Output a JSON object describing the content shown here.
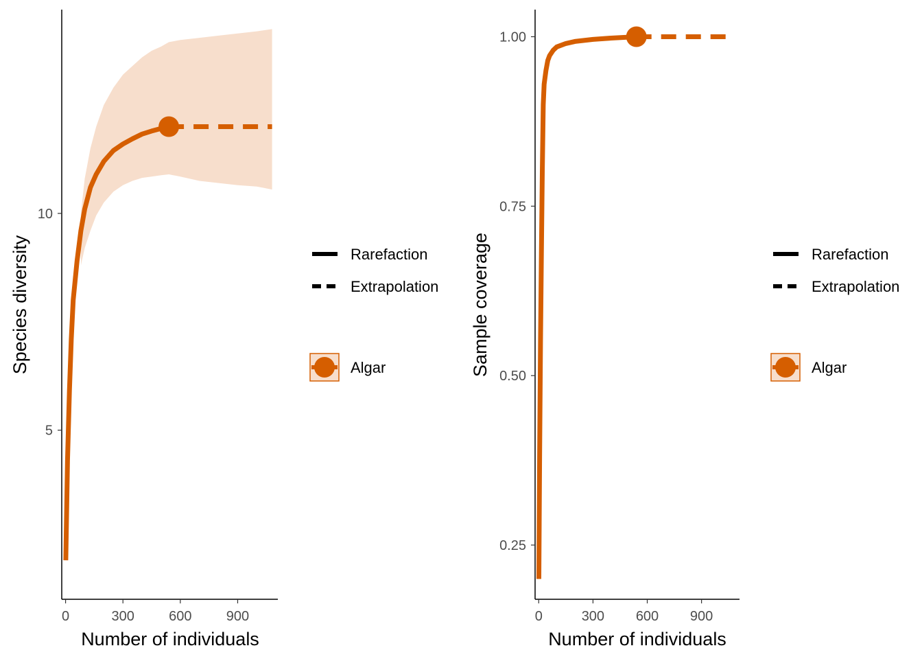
{
  "colors": {
    "series": "#D55E00",
    "band": "#F7DECC",
    "axis": "#000000",
    "tick_text": "#4d4d4d"
  },
  "chart_data": [
    {
      "type": "line",
      "xlabel": "Number of individuals",
      "ylabel": "Species diversity",
      "xlim": [
        -20,
        1110
      ],
      "ylim": [
        1.1,
        14.7
      ],
      "xticks": [
        0,
        300,
        600,
        900
      ],
      "yticks": [
        5,
        10
      ],
      "grid": false,
      "legend_position": "right",
      "observed_point": {
        "x": 540,
        "y": 12
      },
      "rarefaction": {
        "x": [
          1,
          10,
          20,
          30,
          40,
          60,
          80,
          100,
          130,
          160,
          200,
          250,
          300,
          350,
          400,
          450,
          500,
          540
        ],
        "y": [
          2.0,
          4.3,
          5.9,
          7.1,
          8.0,
          8.9,
          9.6,
          10.1,
          10.6,
          10.9,
          11.2,
          11.45,
          11.6,
          11.72,
          11.83,
          11.9,
          11.96,
          12.0
        ]
      },
      "extrapolation": {
        "x": [
          540,
          700,
          900,
          1080
        ],
        "y": [
          12.0,
          12.0,
          12.0,
          12.0
        ]
      },
      "confidence_band": {
        "x": [
          80,
          100,
          130,
          160,
          200,
          250,
          300,
          350,
          400,
          450,
          500,
          540,
          600,
          700,
          800,
          900,
          1000,
          1080
        ],
        "lower": [
          8.8,
          9.2,
          9.6,
          9.95,
          10.25,
          10.5,
          10.65,
          10.75,
          10.82,
          10.85,
          10.88,
          10.9,
          10.85,
          10.75,
          10.7,
          10.65,
          10.62,
          10.55
        ],
        "upper": [
          10.0,
          10.8,
          11.5,
          12.0,
          12.5,
          12.9,
          13.2,
          13.4,
          13.6,
          13.75,
          13.85,
          13.95,
          14.0,
          14.05,
          14.1,
          14.15,
          14.2,
          14.25
        ]
      }
    },
    {
      "type": "line",
      "xlabel": "Number of individuals",
      "ylabel": "Sample coverage",
      "xlim": [
        -20,
        1110
      ],
      "ylim": [
        0.17,
        1.04
      ],
      "xticks": [
        0,
        300,
        600,
        900
      ],
      "yticks": [
        0.25,
        0.5,
        0.75,
        1.0
      ],
      "grid": false,
      "legend_position": "right",
      "observed_point": {
        "x": 540,
        "y": 1.0
      },
      "rarefaction": {
        "x": [
          1,
          5,
          10,
          15,
          20,
          25,
          30,
          40,
          50,
          60,
          80,
          100,
          150,
          200,
          300,
          400,
          540
        ],
        "y": [
          0.2,
          0.38,
          0.55,
          0.68,
          0.8,
          0.9,
          0.93,
          0.95,
          0.965,
          0.972,
          0.98,
          0.985,
          0.99,
          0.993,
          0.996,
          0.998,
          1.0
        ]
      },
      "extrapolation": {
        "x": [
          540,
          700,
          900,
          1080
        ],
        "y": [
          1.0,
          1.0,
          1.0,
          1.0
        ]
      }
    }
  ],
  "legend": {
    "line_types": [
      "Rarefaction",
      "Extrapolation"
    ],
    "series": [
      "Algar"
    ]
  }
}
